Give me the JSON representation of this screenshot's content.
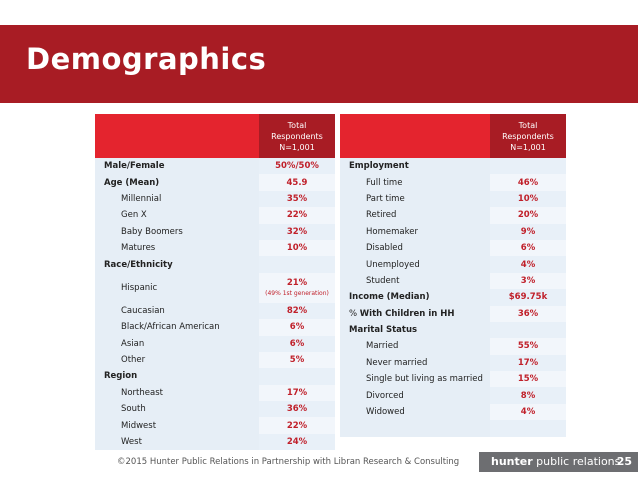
{
  "title": "Demographics",
  "header_lines": [
    "Total",
    "Respondents",
    "N=1,001"
  ],
  "left_rows": [
    {
      "label": "Male/Female",
      "value": "50%/50%",
      "type": "sec"
    },
    {
      "label": "Age (Mean)",
      "value": "45.9",
      "type": "sec"
    },
    {
      "label": "Millennial",
      "value": "35%",
      "type": "sub"
    },
    {
      "label": "Gen X",
      "value": "22%",
      "type": "sub"
    },
    {
      "label": "Baby Boomers",
      "value": "32%",
      "type": "sub"
    },
    {
      "label": "Matures",
      "value": "10%",
      "type": "sub"
    },
    {
      "label": "Race/Ethnicity",
      "value": "",
      "type": "sec"
    },
    {
      "label": "Hispanic",
      "value": "21%",
      "note": "(49% 1st generation)",
      "type": "sub"
    },
    {
      "label": "Caucasian",
      "value": "82%",
      "type": "sub"
    },
    {
      "label": "Black/African American",
      "value": "6%",
      "type": "sub"
    },
    {
      "label": "Asian",
      "value": "6%",
      "type": "sub"
    },
    {
      "label": "Other",
      "value": "5%",
      "type": "sub"
    },
    {
      "label": "Region",
      "value": "",
      "type": "sec"
    },
    {
      "label": "Northeast",
      "value": "17%",
      "type": "sub"
    },
    {
      "label": "South",
      "value": "36%",
      "type": "sub"
    },
    {
      "label": "Midwest",
      "value": "22%",
      "type": "sub"
    },
    {
      "label": "West",
      "value": "24%",
      "type": "sub"
    }
  ],
  "right_rows": [
    {
      "label": "Employment",
      "value": "",
      "type": "sec"
    },
    {
      "label": "Full time",
      "value": "46%",
      "type": "sub"
    },
    {
      "label": "Part time",
      "value": "10%",
      "type": "sub"
    },
    {
      "label": "Retired",
      "value": "20%",
      "type": "sub"
    },
    {
      "label": "Homemaker",
      "value": "9%",
      "type": "sub"
    },
    {
      "label": "Disabled",
      "value": "6%",
      "type": "sub"
    },
    {
      "label": "Unemployed",
      "value": "4%",
      "type": "sub"
    },
    {
      "label": "Student",
      "value": "3%",
      "type": "sub"
    },
    {
      "label": "Income (Median)",
      "value": "$69.75k",
      "type": "sec"
    },
    {
      "label": "% With Children in HH",
      "value": "36%",
      "type": "mix",
      "prefix": "% ",
      "bold": "With Children in HH"
    },
    {
      "label": "Marital Status",
      "value": "",
      "type": "sec"
    },
    {
      "label": "Married",
      "value": "55%",
      "type": "sub"
    },
    {
      "label": "Never married",
      "value": "17%",
      "type": "sub"
    },
    {
      "label": "Single but living as married",
      "value": "15%",
      "type": "sub"
    },
    {
      "label": "Divorced",
      "value": "8%",
      "type": "sub"
    },
    {
      "label": "Widowed",
      "value": "4%",
      "type": "sub"
    },
    {
      "label": "",
      "value": "",
      "type": "sub"
    }
  ],
  "footer": "©2015 Hunter Public Relations in Partnership with Libran Research & Consulting",
  "brand": {
    "bold": "hunter",
    "rest": " public relations",
    "page": "25"
  },
  "colors": {
    "banner": "#a81c24",
    "header_red": "#e4242e",
    "value_text": "#c0202a",
    "brand_bar": "#6d6e71"
  }
}
